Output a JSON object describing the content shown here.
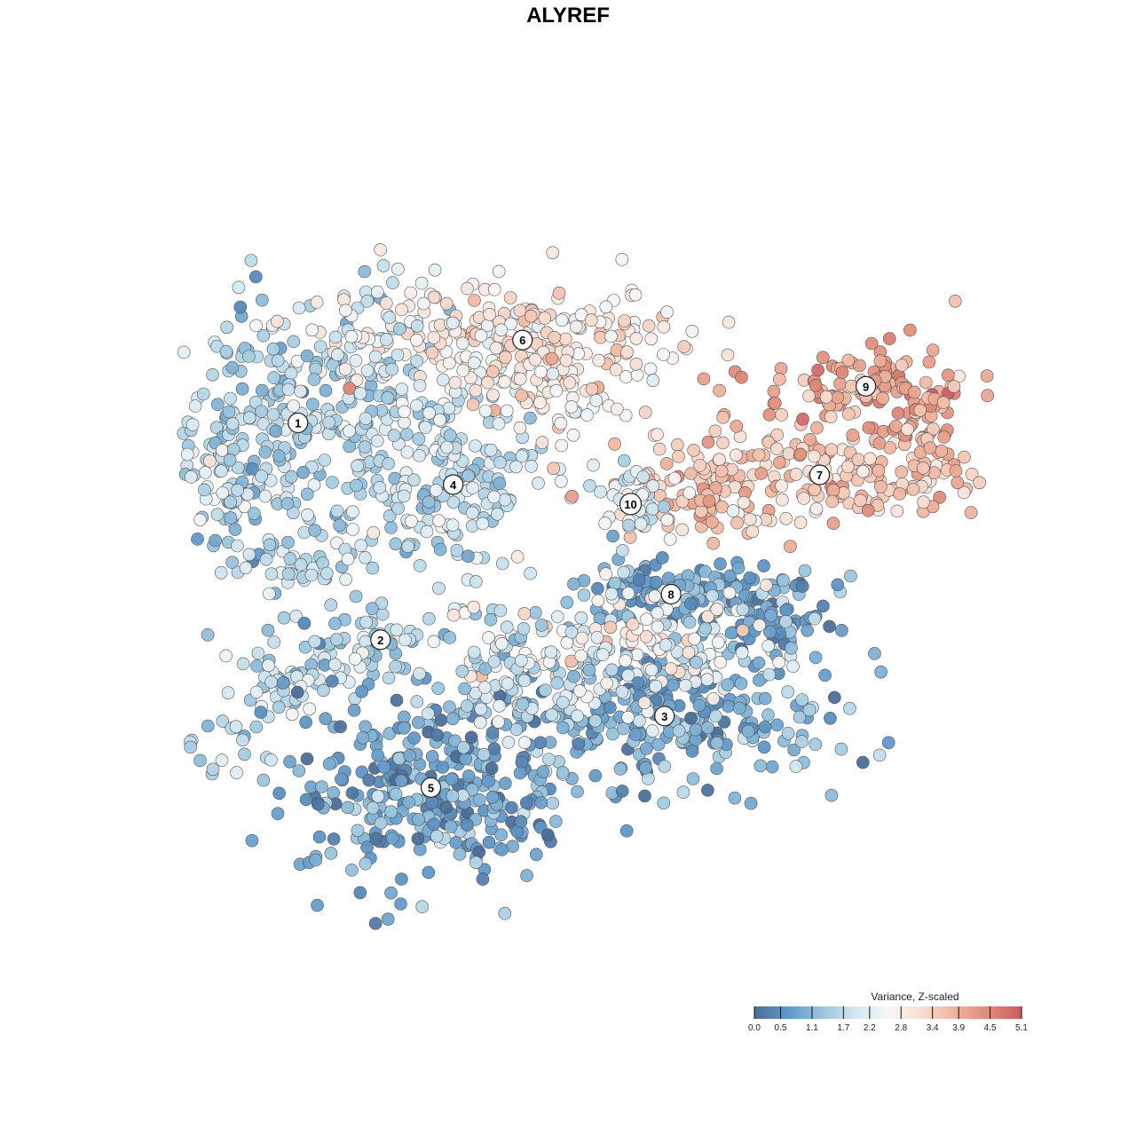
{
  "chart_data": {
    "type": "scatter",
    "title": "ALYREF",
    "xlabel": "",
    "ylabel": "",
    "grid": false,
    "legend_placement": "bottom-right",
    "colorbar": {
      "title": "Variance, Z-scaled",
      "ticks": [
        "0.0",
        "0.5",
        "1.1",
        "1.7",
        "2.2",
        "2.8",
        "3.4",
        "3.9",
        "4.5",
        "5.1"
      ],
      "min": 0.0,
      "max": 5.1,
      "colors": [
        "#4a6e99",
        "#5f97c9",
        "#97c4dd",
        "#d2e6f0",
        "#f7f7f7",
        "#f8ddd0",
        "#efb39c",
        "#e08a78",
        "#cc5b62"
      ]
    },
    "clusters": [
      {
        "label": "1",
        "x": 0.146,
        "y": 0.676,
        "value": 1.6,
        "lobes": [
          {
            "dx": 0.0,
            "dy": 0.0,
            "sx": 0.09,
            "sy": 0.08,
            "n": 330
          },
          {
            "dx": -0.095,
            "dy": -0.06,
            "sx": 0.025,
            "sy": 0.05,
            "n": 55
          },
          {
            "dx": 0.0,
            "dy": -0.185,
            "sx": 0.035,
            "sy": 0.02,
            "n": 28
          }
        ]
      },
      {
        "label": "2",
        "x": 0.246,
        "y": 0.409,
        "value": 1.6,
        "lobes": [
          {
            "dx": -0.03,
            "dy": 0.0,
            "sx": 0.055,
            "sy": 0.025,
            "n": 70
          },
          {
            "dx": -0.12,
            "dy": -0.055,
            "sx": 0.035,
            "sy": 0.022,
            "n": 45
          },
          {
            "dx": -0.2,
            "dy": -0.135,
            "sx": 0.035,
            "sy": 0.02,
            "n": 25
          }
        ]
      },
      {
        "label": "3",
        "x": 0.59,
        "y": 0.315,
        "value": 1.0,
        "lobes": [
          {
            "dx": 0.0,
            "dy": 0.0,
            "sx": 0.1,
            "sy": 0.045,
            "n": 300
          }
        ]
      },
      {
        "label": "4",
        "x": 0.334,
        "y": 0.6,
        "value": 1.7,
        "lobes": [
          {
            "dx": 0.0,
            "dy": 0.0,
            "sx": 0.05,
            "sy": 0.06,
            "n": 180
          }
        ]
      },
      {
        "label": "5",
        "x": 0.307,
        "y": 0.227,
        "value": 0.8,
        "lobes": [
          {
            "dx": 0.0,
            "dy": 0.0,
            "sx": 0.085,
            "sy": 0.06,
            "n": 320
          }
        ]
      },
      {
        "label": "6",
        "x": 0.418,
        "y": 0.778,
        "value": 2.9,
        "lobes": [
          {
            "dx": 0.0,
            "dy": 0.0,
            "sx": 0.1,
            "sy": 0.03,
            "n": 210
          },
          {
            "dx": 0.04,
            "dy": -0.075,
            "sx": 0.05,
            "sy": 0.025,
            "n": 60
          }
        ]
      },
      {
        "label": "7",
        "x": 0.778,
        "y": 0.612,
        "value": 3.5,
        "lobes": [
          {
            "dx": 0.0,
            "dy": 0.0,
            "sx": 0.105,
            "sy": 0.03,
            "n": 210
          },
          {
            "dx": -0.15,
            "dy": -0.03,
            "sx": 0.06,
            "sy": 0.02,
            "n": 50
          }
        ]
      },
      {
        "label": "8",
        "x": 0.598,
        "y": 0.465,
        "value": 0.8,
        "lobes": [
          {
            "dx": 0.0,
            "dy": 0.0,
            "sx": 0.06,
            "sy": 0.02,
            "n": 110
          },
          {
            "dx": 0.135,
            "dy": -0.03,
            "sx": 0.035,
            "sy": 0.025,
            "n": 70
          }
        ]
      },
      {
        "label": "9",
        "x": 0.834,
        "y": 0.721,
        "value": 4.0,
        "lobes": [
          {
            "dx": 0.0,
            "dy": 0.0,
            "sx": 0.065,
            "sy": 0.025,
            "n": 110
          },
          {
            "dx": 0.07,
            "dy": -0.045,
            "sx": 0.02,
            "sy": 0.035,
            "n": 35
          }
        ]
      },
      {
        "label": "10",
        "x": 0.549,
        "y": 0.576,
        "value": 2.0,
        "lobes": [
          {
            "dx": 0.0,
            "dy": 0.0,
            "sx": 0.02,
            "sy": 0.03,
            "n": 45
          }
        ]
      }
    ],
    "transition_regions": [
      {
        "x": 0.54,
        "y": 0.4,
        "sx": 0.085,
        "sy": 0.035,
        "value": 2.4,
        "n": 150
      },
      {
        "x": 0.42,
        "y": 0.37,
        "sx": 0.055,
        "sy": 0.04,
        "value": 1.9,
        "n": 80
      },
      {
        "x": 0.25,
        "y": 0.79,
        "sx": 0.035,
        "sy": 0.04,
        "value": 2.2,
        "n": 50
      }
    ]
  }
}
